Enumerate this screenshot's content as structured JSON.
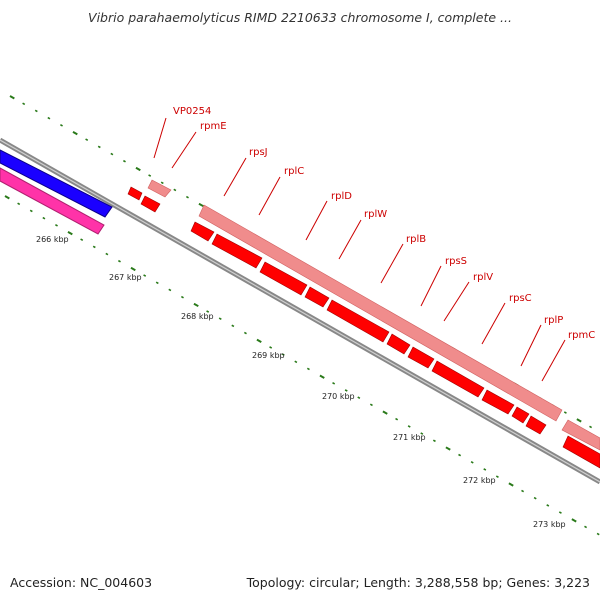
{
  "title": "Vibrio parahaemolyticus RIMD 2210633 chromosome I, complete ...",
  "footer": {
    "accession": "Accession: NC_004603",
    "summary": "Topology: circular; Length: 3,288,558 bp; Genes: 3,223"
  },
  "axis": {
    "tick_labels": [
      "266 kbp",
      "267 kbp",
      "268 kbp",
      "269 kbp",
      "270 kbp",
      "271 kbp",
      "272 kbp",
      "273 kbp"
    ]
  },
  "gene_labels": [
    "VP0254",
    "rpmE",
    "rpsJ",
    "rplC",
    "rplD",
    "rplW",
    "rplB",
    "rpsS",
    "rplV",
    "rpsC",
    "rplP",
    "rpmC"
  ],
  "colors": {
    "backbone": "#888888",
    "gene_dark": "#ff0000",
    "gene_light": "#f08c8c",
    "blue_feature": "#1a00ff",
    "pink_feature": "#ff33a8",
    "tick": "#2a7a1a",
    "label": "#cc0000"
  }
}
